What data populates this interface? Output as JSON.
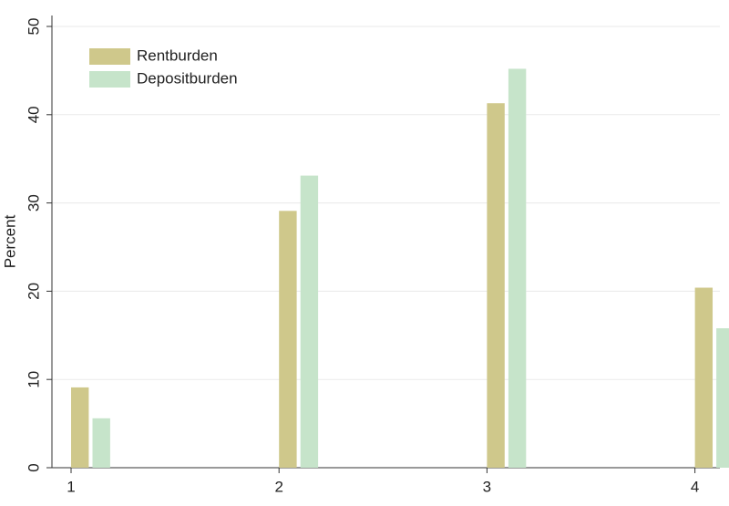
{
  "chart_data": {
    "type": "bar",
    "y_label": "Percent",
    "x": [
      1,
      2,
      3,
      4
    ],
    "xlim": [
      0.908,
      4.12
    ],
    "xticks": [
      1,
      2,
      3,
      4
    ],
    "ylim": [
      0,
      50
    ],
    "yticks": [
      0,
      10,
      20,
      30,
      40,
      50
    ],
    "grid": true,
    "legend": "top-left",
    "series": [
      {
        "name": "Rentburden",
        "color": "#cfc88b",
        "values": [
          9.1,
          29.1,
          41.3,
          20.4
        ]
      },
      {
        "name": "Depositburden",
        "color": "#c6e4ca",
        "values": [
          5.6,
          33.1,
          45.2,
          15.8
        ]
      }
    ]
  }
}
